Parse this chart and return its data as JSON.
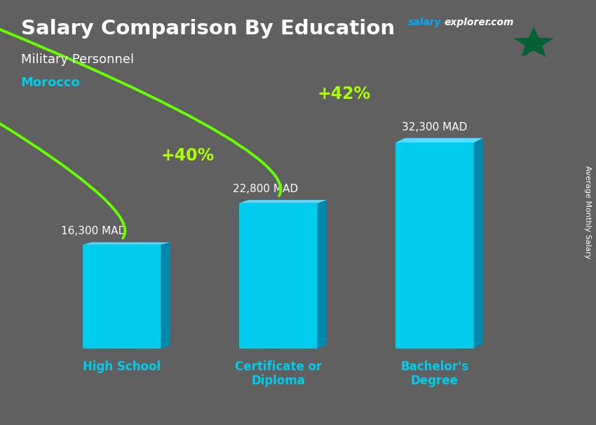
{
  "title": "Salary Comparison By Education",
  "subtitle": "Military Personnel",
  "country": "Morocco",
  "ylabel": "Average Monthly Salary",
  "categories": [
    "High School",
    "Certificate or\nDiploma",
    "Bachelor's\nDegree"
  ],
  "values": [
    16300,
    22800,
    32300
  ],
  "labels": [
    "16,300 MAD",
    "22,800 MAD",
    "32,300 MAD"
  ],
  "pct_labels": [
    "+40%",
    "+42%"
  ],
  "bar_color_face": "#00CCEE",
  "bar_color_side": "#0088AA",
  "bar_color_top": "#55DDFF",
  "background_color": "#606060",
  "title_color": "#FFFFFF",
  "subtitle_color": "#FFFFFF",
  "country_color": "#00CCEE",
  "label_color": "#FFFFFF",
  "pct_color": "#AAFF00",
  "arrow_color": "#66FF00",
  "xtick_color": "#00CCEE",
  "ylabel_color": "#FFFFFF",
  "salary_color": "#00AAFF",
  "explorer_color": "#FFFFFF",
  "com_color": "#FFFFFF",
  "ylim": [
    0,
    40000
  ],
  "bar_width": 0.5,
  "flag_red": "#C1272D",
  "flag_green": "#006233"
}
